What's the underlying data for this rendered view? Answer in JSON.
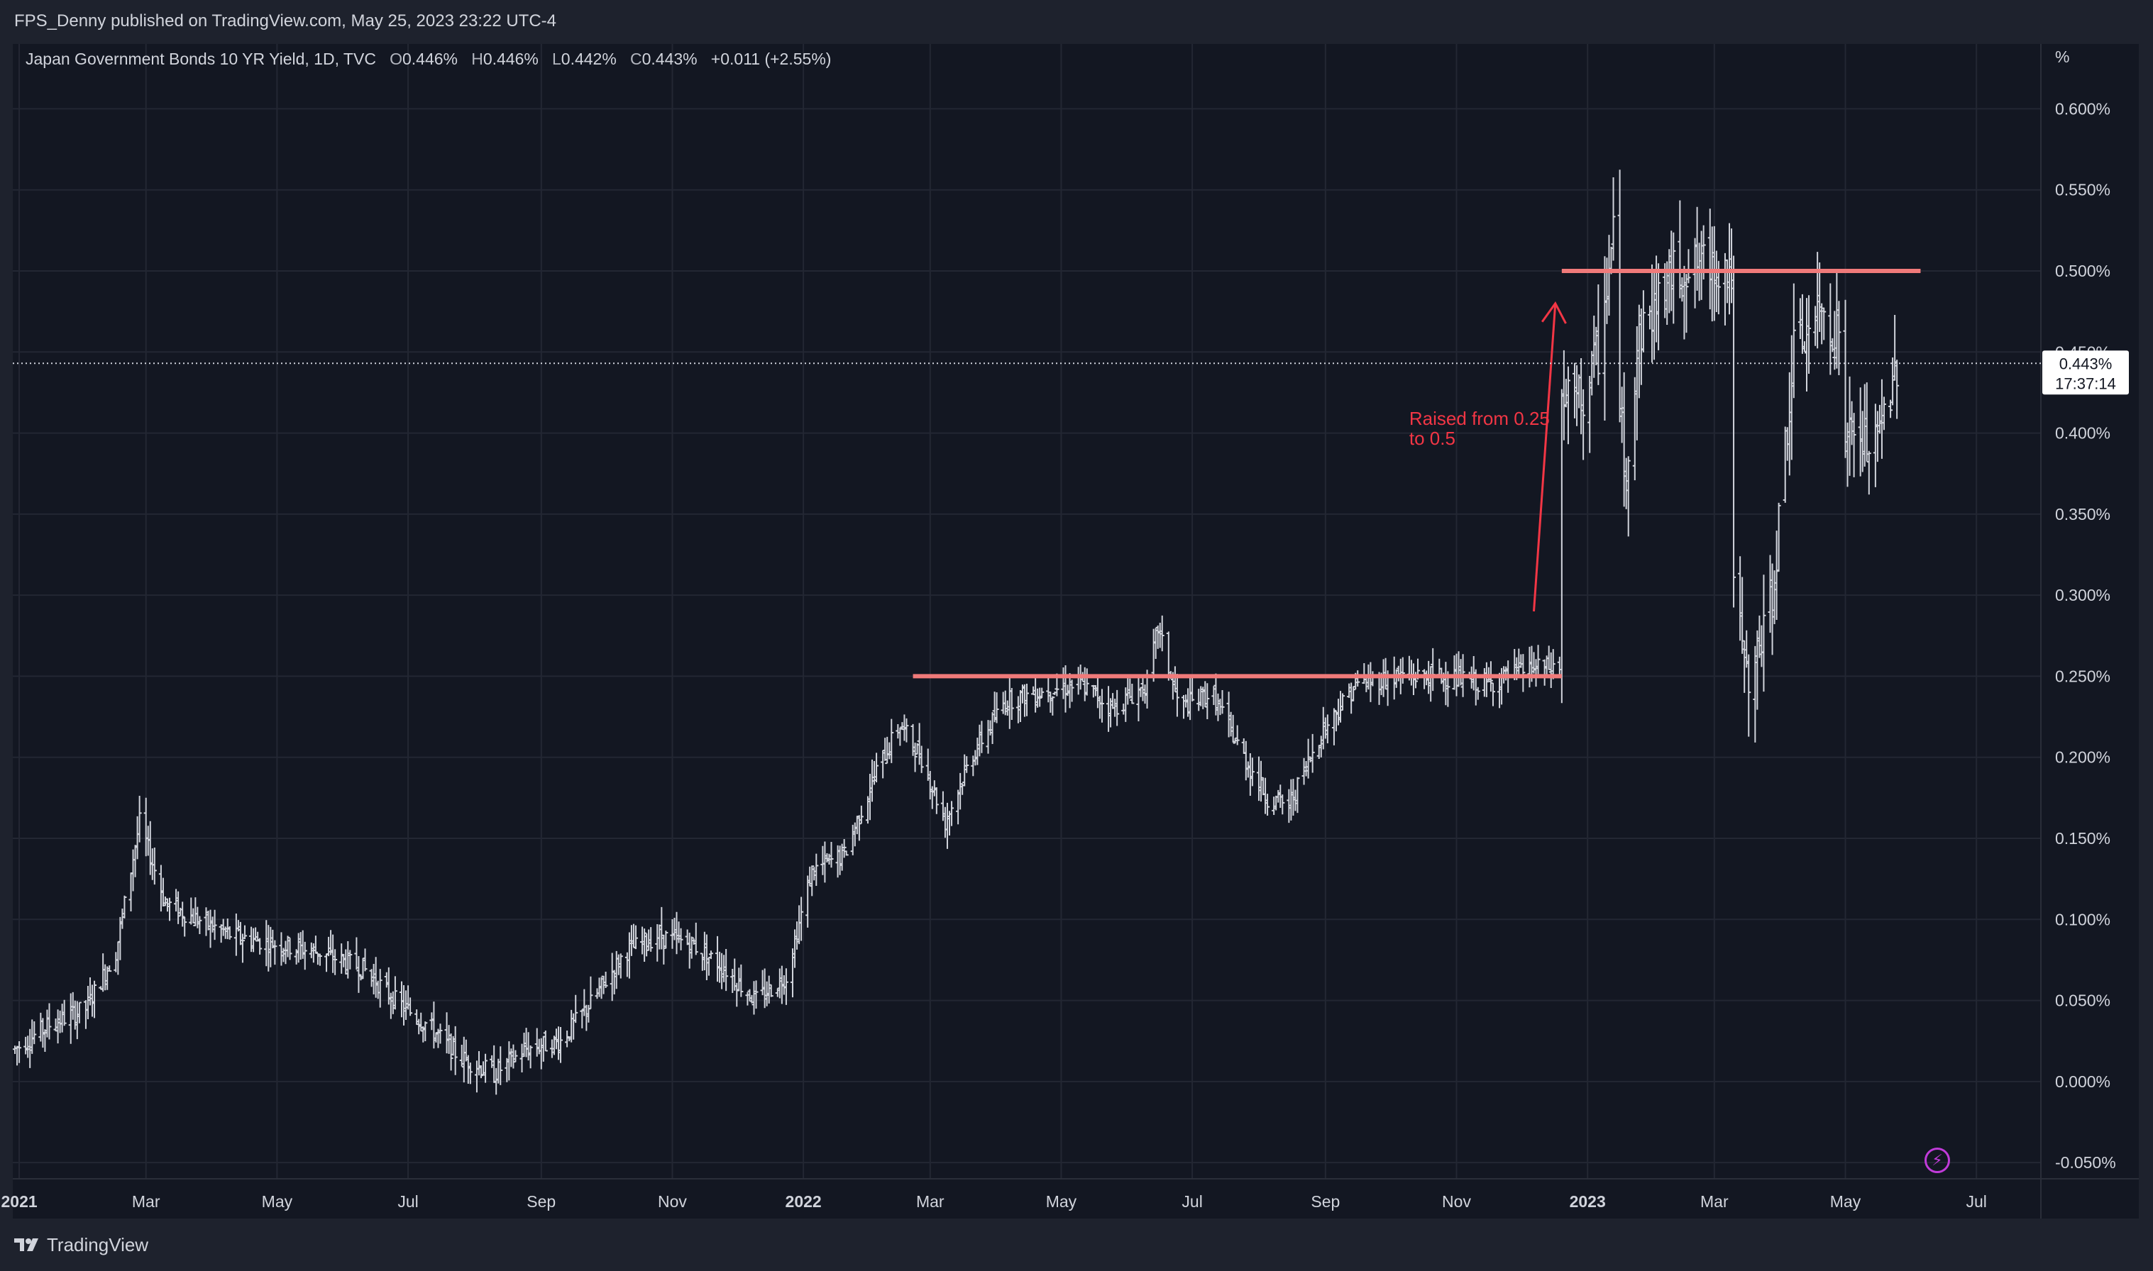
{
  "header": {
    "published_by": "FPS_Denny published on TradingView.com, May 25, 2023 23:22 UTC-4"
  },
  "legend": {
    "symbol": "Japan Government Bonds 10 YR Yield, 1D, TVC",
    "o_key": "O",
    "o_val": "0.446%",
    "h_key": "H",
    "h_val": "0.446%",
    "l_key": "L",
    "l_val": "0.442%",
    "c_key": "C",
    "c_val": "0.443%",
    "change": "+0.011 (+2.55%)"
  },
  "price_badge": {
    "value": "0.443%",
    "countdown": "17:37:14"
  },
  "annotation": {
    "line1": "Raised from 0.25",
    "line2": "to 0.5"
  },
  "footer": {
    "brand": "TradingView"
  },
  "colors": {
    "background": "#131722",
    "frame": "#1e222d",
    "bars": "#d1d4dc",
    "annotation": "#f23645",
    "level_line": "#f07a7a",
    "grid": "#232733"
  },
  "chart_data": {
    "type": "ohlc",
    "title": "Japan Government Bonds 10 YR Yield, 1D, TVC",
    "y_unit": "%",
    "ylim": [
      -0.06,
      0.64
    ],
    "y_ticks": [
      "0.600%",
      "0.550%",
      "0.500%",
      "0.450%",
      "0.400%",
      "0.350%",
      "0.300%",
      "0.250%",
      "0.200%",
      "0.150%",
      "0.100%",
      "0.050%",
      "0.000%",
      "-0.050%"
    ],
    "y_tick_values": [
      0.6,
      0.55,
      0.5,
      0.45,
      0.4,
      0.35,
      0.3,
      0.25,
      0.2,
      0.15,
      0.1,
      0.05,
      0.0,
      -0.05
    ],
    "x_ticks": [
      "2021",
      "Mar",
      "May",
      "Jul",
      "Sep",
      "Nov",
      "2022",
      "Mar",
      "May",
      "Jul",
      "Sep",
      "Nov",
      "2023",
      "Mar",
      "May",
      "Jul"
    ],
    "x_tick_dates": [
      "2021-01-01",
      "2021-03-01",
      "2021-05-01",
      "2021-07-01",
      "2021-09-01",
      "2021-11-01",
      "2022-01-01",
      "2022-03-01",
      "2022-05-01",
      "2022-07-01",
      "2022-09-01",
      "2022-11-01",
      "2023-01-01",
      "2023-03-01",
      "2023-05-01",
      "2023-07-01"
    ],
    "x_range": [
      "2020-12-29",
      "2023-07-31"
    ],
    "grid": true,
    "last_close": 0.443,
    "series_path": [
      [
        "2020-12-30",
        0.02
      ],
      [
        "2021-01-15",
        0.035
      ],
      [
        "2021-02-01",
        0.045
      ],
      [
        "2021-02-15",
        0.08
      ],
      [
        "2021-02-26",
        0.16
      ],
      [
        "2021-03-10",
        0.11
      ],
      [
        "2021-03-25",
        0.1
      ],
      [
        "2021-04-10",
        0.09
      ],
      [
        "2021-04-30",
        0.085
      ],
      [
        "2021-05-20",
        0.08
      ],
      [
        "2021-06-10",
        0.07
      ],
      [
        "2021-06-25",
        0.05
      ],
      [
        "2021-07-10",
        0.035
      ],
      [
        "2021-07-25",
        0.015
      ],
      [
        "2021-08-10",
        0.005
      ],
      [
        "2021-08-25",
        0.02
      ],
      [
        "2021-09-10",
        0.025
      ],
      [
        "2021-09-25",
        0.05
      ],
      [
        "2021-10-10",
        0.08
      ],
      [
        "2021-10-25",
        0.09
      ],
      [
        "2021-11-10",
        0.085
      ],
      [
        "2021-11-25",
        0.07
      ],
      [
        "2021-12-10",
        0.05
      ],
      [
        "2021-12-24",
        0.065
      ],
      [
        "2022-01-05",
        0.13
      ],
      [
        "2022-01-20",
        0.14
      ],
      [
        "2022-02-05",
        0.195
      ],
      [
        "2022-02-15",
        0.22
      ],
      [
        "2022-02-25",
        0.2
      ],
      [
        "2022-03-08",
        0.16
      ],
      [
        "2022-03-20",
        0.2
      ],
      [
        "2022-04-05",
        0.235
      ],
      [
        "2022-04-20",
        0.24
      ],
      [
        "2022-05-10",
        0.245
      ],
      [
        "2022-05-25",
        0.23
      ],
      [
        "2022-06-10",
        0.245
      ],
      [
        "2022-06-15",
        0.28
      ],
      [
        "2022-06-25",
        0.23
      ],
      [
        "2022-07-10",
        0.24
      ],
      [
        "2022-07-25",
        0.2
      ],
      [
        "2022-08-05",
        0.175
      ],
      [
        "2022-08-15",
        0.17
      ],
      [
        "2022-08-30",
        0.215
      ],
      [
        "2022-09-15",
        0.245
      ],
      [
        "2022-10-05",
        0.25
      ],
      [
        "2022-10-25",
        0.25
      ],
      [
        "2022-11-15",
        0.245
      ],
      [
        "2022-12-05",
        0.255
      ],
      [
        "2022-12-19",
        0.255
      ],
      [
        "2022-12-20",
        0.42
      ],
      [
        "2022-12-30",
        0.42
      ],
      [
        "2023-01-06",
        0.45
      ],
      [
        "2023-01-13",
        0.52
      ],
      [
        "2023-01-18",
        0.37
      ],
      [
        "2023-01-25",
        0.46
      ],
      [
        "2023-02-10",
        0.5
      ],
      [
        "2023-03-01",
        0.505
      ],
      [
        "2023-03-09",
        0.5
      ],
      [
        "2023-03-10",
        0.3
      ],
      [
        "2023-03-17",
        0.24
      ],
      [
        "2023-03-28",
        0.3
      ],
      [
        "2023-04-07",
        0.45
      ],
      [
        "2023-04-20",
        0.475
      ],
      [
        "2023-04-28",
        0.46
      ],
      [
        "2023-05-01",
        0.4
      ],
      [
        "2023-05-15",
        0.39
      ],
      [
        "2023-05-25",
        0.443
      ]
    ],
    "horizontal_levels": [
      {
        "value": 0.25,
        "from": "2022-02-21",
        "to": "2022-12-20"
      },
      {
        "value": 0.5,
        "from": "2022-12-20",
        "to": "2023-06-05"
      }
    ],
    "arrow": {
      "from": [
        "2022-12-07",
        0.29
      ],
      "to": [
        "2022-12-17",
        0.48
      ]
    },
    "annotation_anchor": [
      "2022-10-10",
      0.405
    ]
  }
}
